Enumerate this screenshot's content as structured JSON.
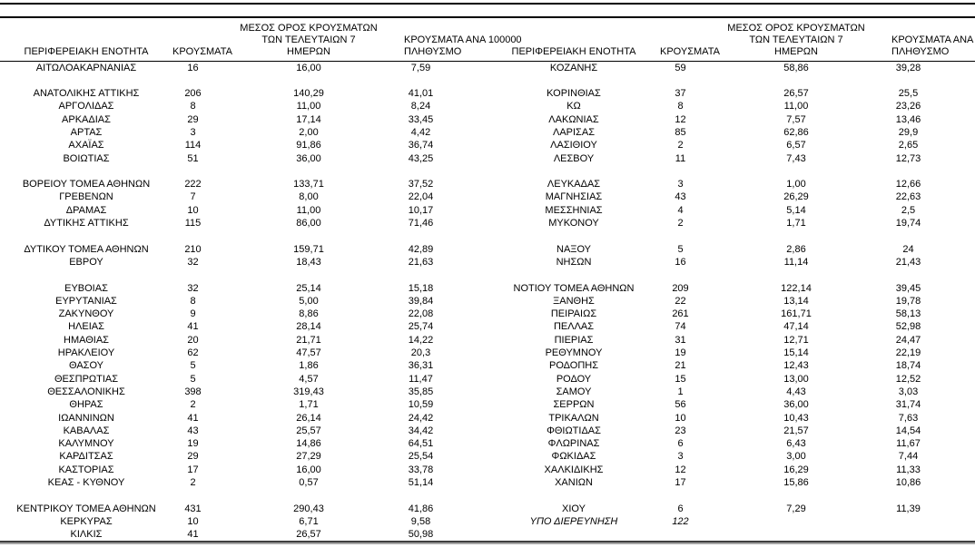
{
  "table": {
    "columns": {
      "region": "ΠΕΡΙΦΕΡΕΙΑΚΗ ΕΝΟΤΗΤΑ",
      "cases": "ΚΡΟΥΣΜΑΤΑ",
      "avg7_lines": [
        "ΜΕΣΟΣ ΟΡΟΣ ΚΡΟΥΣΜΑΤΩΝ",
        "ΤΩΝ ΤΕΛΕΥΤΑΙΩΝ 7",
        "ΗΜΕΡΩΝ"
      ],
      "per100k_lines": [
        "ΚΡΟΥΣΜΑΤΑ ΑΝΑ 100000",
        "ΠΛΗΘΥΣΜΟ"
      ]
    },
    "under_investigation_row": 35,
    "rows": [
      [
        "ΑΙΤΩΛΟΑΚΑΡΝΑΝΙΑΣ",
        "16",
        "16,00",
        "7,59",
        "ΚΟΖΑΝΗΣ",
        "59",
        "58,86",
        "39,28"
      ],
      [
        "",
        "",
        "",
        "",
        "",
        "",
        "",
        ""
      ],
      [
        "ΑΝΑΤΟΛΙΚΗΣ ΑΤΤΙΚΗΣ",
        "206",
        "140,29",
        "41,01",
        "ΚΟΡΙΝΘΙΑΣ",
        "37",
        "26,57",
        "25,5"
      ],
      [
        "ΑΡΓΟΛΙΔΑΣ",
        "8",
        "11,00",
        "8,24",
        "ΚΩ",
        "8",
        "11,00",
        "23,26"
      ],
      [
        "ΑΡΚΑΔΙΑΣ",
        "29",
        "17,14",
        "33,45",
        "ΛΑΚΩΝΙΑΣ",
        "12",
        "7,57",
        "13,46"
      ],
      [
        "ΑΡΤΑΣ",
        "3",
        "2,00",
        "4,42",
        "ΛΑΡΙΣΑΣ",
        "85",
        "62,86",
        "29,9"
      ],
      [
        "ΑΧΑΪΑΣ",
        "114",
        "91,86",
        "36,74",
        "ΛΑΣΙΘΙΟΥ",
        "2",
        "6,57",
        "2,65"
      ],
      [
        "ΒΟΙΩΤΙΑΣ",
        "51",
        "36,00",
        "43,25",
        "ΛΕΣΒΟΥ",
        "11",
        "7,43",
        "12,73"
      ],
      [
        "",
        "",
        "",
        "",
        "",
        "",
        "",
        ""
      ],
      [
        "ΒΟΡΕΙΟΥ ΤΟΜΕΑ ΑΘΗΝΩΝ",
        "222",
        "133,71",
        "37,52",
        "ΛΕΥΚΑΔΑΣ",
        "3",
        "1,00",
        "12,66"
      ],
      [
        "ΓΡΕΒΕΝΩΝ",
        "7",
        "8,00",
        "22,04",
        "ΜΑΓΝΗΣΙΑΣ",
        "43",
        "26,29",
        "22,63"
      ],
      [
        "ΔΡΑΜΑΣ",
        "10",
        "11,00",
        "10,17",
        "ΜΕΣΣΗΝΙΑΣ",
        "4",
        "5,14",
        "2,5"
      ],
      [
        "ΔΥΤΙΚΗΣ ΑΤΤΙΚΗΣ",
        "115",
        "86,00",
        "71,46",
        "ΜΥΚΟΝΟΥ",
        "2",
        "1,71",
        "19,74"
      ],
      [
        "",
        "",
        "",
        "",
        "",
        "",
        "",
        ""
      ],
      [
        "ΔΥΤΙΚΟΥ ΤΟΜΕΑ ΑΘΗΝΩΝ",
        "210",
        "159,71",
        "42,89",
        "ΝΑΞΟΥ",
        "5",
        "2,86",
        "24"
      ],
      [
        "ΕΒΡΟΥ",
        "32",
        "18,43",
        "21,63",
        "ΝΗΣΩΝ",
        "16",
        "11,14",
        "21,43"
      ],
      [
        "",
        "",
        "",
        "",
        "",
        "",
        "",
        ""
      ],
      [
        "ΕΥΒΟΙΑΣ",
        "32",
        "25,14",
        "15,18",
        "ΝΟΤΙΟΥ ΤΟΜΕΑ ΑΘΗΝΩΝ",
        "209",
        "122,14",
        "39,45"
      ],
      [
        "ΕΥΡΥΤΑΝΙΑΣ",
        "8",
        "5,00",
        "39,84",
        "ΞΑΝΘΗΣ",
        "22",
        "13,14",
        "19,78"
      ],
      [
        "ΖΑΚΥΝΘΟΥ",
        "9",
        "8,86",
        "22,08",
        "ΠΕΙΡΑΙΩΣ",
        "261",
        "161,71",
        "58,13"
      ],
      [
        "ΗΛΕΙΑΣ",
        "41",
        "28,14",
        "25,74",
        "ΠΕΛΛΑΣ",
        "74",
        "47,14",
        "52,98"
      ],
      [
        "ΗΜΑΘΙΑΣ",
        "20",
        "21,71",
        "14,22",
        "ΠΙΕΡΙΑΣ",
        "31",
        "12,71",
        "24,47"
      ],
      [
        "ΗΡΑΚΛΕΙΟΥ",
        "62",
        "47,57",
        "20,3",
        "ΡΕΘΥΜΝΟΥ",
        "19",
        "15,14",
        "22,19"
      ],
      [
        "ΘΑΣΟΥ",
        "5",
        "1,86",
        "36,31",
        "ΡΟΔΟΠΗΣ",
        "21",
        "12,43",
        "18,74"
      ],
      [
        "ΘΕΣΠΡΩΤΙΑΣ",
        "5",
        "4,57",
        "11,47",
        "ΡΟΔΟΥ",
        "15",
        "13,00",
        "12,52"
      ],
      [
        "ΘΕΣΣΑΛΟΝΙΚΗΣ",
        "398",
        "319,43",
        "35,85",
        "ΣΑΜΟΥ",
        "1",
        "4,43",
        "3,03"
      ],
      [
        "ΘΗΡΑΣ",
        "2",
        "1,71",
        "10,59",
        "ΣΕΡΡΩΝ",
        "56",
        "36,00",
        "31,74"
      ],
      [
        "ΙΩΑΝΝΙΝΩΝ",
        "41",
        "26,14",
        "24,42",
        "ΤΡΙΚΑΛΩΝ",
        "10",
        "10,43",
        "7,63"
      ],
      [
        "ΚΑΒΑΛΑΣ",
        "43",
        "25,57",
        "34,42",
        "ΦΘΙΩΤΙΔΑΣ",
        "23",
        "21,57",
        "14,54"
      ],
      [
        "ΚΑΛΥΜΝΟΥ",
        "19",
        "14,86",
        "64,51",
        "ΦΛΩΡΙΝΑΣ",
        "6",
        "6,43",
        "11,67"
      ],
      [
        "ΚΑΡΔΙΤΣΑΣ",
        "29",
        "27,29",
        "25,54",
        "ΦΩΚΙΔΑΣ",
        "3",
        "3,00",
        "7,44"
      ],
      [
        "ΚΑΣΤΟΡΙΑΣ",
        "17",
        "16,00",
        "33,78",
        "ΧΑΛΚΙΔΙΚΗΣ",
        "12",
        "16,29",
        "11,33"
      ],
      [
        "ΚΕΑΣ - ΚΥΘΝΟΥ",
        "2",
        "0,57",
        "51,14",
        "ΧΑΝΙΩΝ",
        "17",
        "15,86",
        "10,86"
      ],
      [
        "",
        "",
        "",
        "",
        "",
        "",
        "",
        ""
      ],
      [
        "ΚΕΝΤΡΙΚΟΥ ΤΟΜΕΑ ΑΘΗΝΩΝ",
        "431",
        "290,43",
        "41,86",
        "ΧΙΟΥ",
        "6",
        "7,29",
        "11,39"
      ],
      [
        "ΚΕΡΚΥΡΑΣ",
        "10",
        "6,71",
        "9,58",
        "ΥΠΟ ΔΙΕΡΕΥΝΗΣΗ",
        "122",
        "",
        ""
      ],
      [
        "ΚΙΛΚΙΣ",
        "41",
        "26,57",
        "50,98",
        "",
        "",
        "",
        ""
      ]
    ]
  },
  "colors": {
    "text": "#000000",
    "rule": "#000000",
    "bottom_border_dark": "#3f3f3f",
    "bottom_border_light": "#a6a6a6"
  }
}
